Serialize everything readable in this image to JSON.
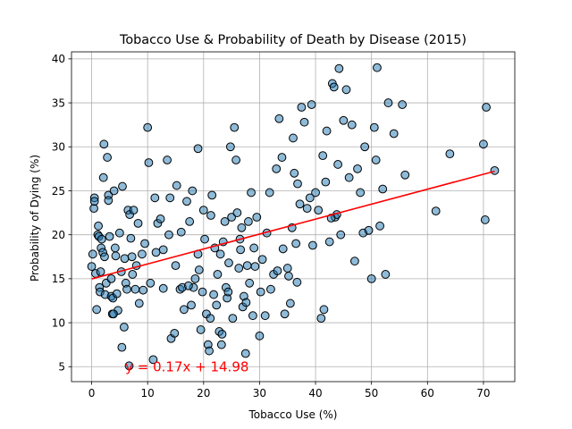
{
  "chart_data": {
    "type": "scatter",
    "title": "Tobacco Use & Probability of Death by Disease (2015)",
    "xlabel": "Tobacco Use (%)",
    "ylabel": "Probability of Dying (%)",
    "xlim": [
      -3.6,
      75.6
    ],
    "ylim": [
      3.3,
      40.8
    ],
    "xticks": [
      0,
      10,
      20,
      30,
      40,
      50,
      60,
      70
    ],
    "yticks": [
      5,
      10,
      15,
      20,
      25,
      30,
      35,
      40
    ],
    "grid": true,
    "marker_color": "#1f77b4",
    "fit_color": "#ff0000",
    "regression": {
      "slope": 0.17,
      "intercept": 14.98,
      "x_range": [
        0,
        72
      ]
    },
    "annotation": "y = 0.17x + 14.98",
    "points": [
      [
        0.4,
        23.0
      ],
      [
        0.5,
        24.2
      ],
      [
        0.5,
        23.8
      ],
      [
        0.2,
        17.8
      ],
      [
        0.0,
        16.4
      ],
      [
        0.7,
        15.6
      ],
      [
        0.9,
        11.5
      ],
      [
        1.1,
        20.0
      ],
      [
        1.2,
        21.0
      ],
      [
        1.3,
        19.8
      ],
      [
        1.4,
        14.0
      ],
      [
        1.5,
        13.5
      ],
      [
        1.6,
        15.8
      ],
      [
        1.7,
        18.5
      ],
      [
        1.8,
        19.5
      ],
      [
        2.0,
        18.0
      ],
      [
        2.1,
        26.5
      ],
      [
        2.2,
        30.3
      ],
      [
        2.3,
        17.5
      ],
      [
        2.4,
        13.2
      ],
      [
        2.6,
        14.5
      ],
      [
        2.8,
        28.8
      ],
      [
        3.0,
        24.5
      ],
      [
        3.0,
        23.9
      ],
      [
        3.2,
        19.8
      ],
      [
        3.5,
        15.0
      ],
      [
        3.5,
        13.0
      ],
      [
        3.7,
        11.0
      ],
      [
        3.8,
        12.8
      ],
      [
        4.0,
        25.0
      ],
      [
        4.2,
        18.5
      ],
      [
        4.3,
        17.6
      ],
      [
        4.5,
        13.3
      ],
      [
        4.7,
        11.4
      ],
      [
        5.0,
        20.2
      ],
      [
        5.3,
        15.8
      ],
      [
        5.4,
        7.2
      ],
      [
        5.5,
        25.5
      ],
      [
        5.8,
        9.5
      ],
      [
        5.9,
        17.3
      ],
      [
        6.1,
        14.5
      ],
      [
        6.3,
        13.8
      ],
      [
        6.5,
        22.8
      ],
      [
        6.8,
        22.3
      ],
      [
        7.0,
        19.6
      ],
      [
        7.2,
        17.5
      ],
      [
        7.5,
        22.8
      ],
      [
        7.8,
        13.8
      ],
      [
        8.0,
        16.5
      ],
      [
        8.3,
        21.3
      ],
      [
        8.5,
        12.2
      ],
      [
        9.0,
        17.8
      ],
      [
        9.5,
        19.0
      ],
      [
        10.0,
        32.2
      ],
      [
        10.2,
        28.2
      ],
      [
        10.5,
        14.5
      ],
      [
        11.0,
        5.8
      ],
      [
        11.3,
        24.2
      ],
      [
        11.5,
        18.0
      ],
      [
        11.8,
        21.3
      ],
      [
        12.3,
        21.8
      ],
      [
        12.8,
        18.3
      ],
      [
        13.5,
        28.5
      ],
      [
        13.8,
        20.0
      ],
      [
        14.0,
        24.2
      ],
      [
        14.2,
        8.2
      ],
      [
        14.8,
        8.8
      ],
      [
        15.0,
        16.5
      ],
      [
        15.2,
        25.6
      ],
      [
        15.8,
        13.8
      ],
      [
        16.0,
        20.3
      ],
      [
        16.2,
        14.0
      ],
      [
        16.5,
        11.5
      ],
      [
        17.0,
        23.8
      ],
      [
        17.5,
        21.5
      ],
      [
        17.8,
        12.0
      ],
      [
        18.0,
        25.0
      ],
      [
        18.2,
        14.0
      ],
      [
        18.5,
        15.0
      ],
      [
        19.0,
        29.8
      ],
      [
        19.2,
        16.0
      ],
      [
        19.5,
        9.2
      ],
      [
        19.8,
        13.5
      ],
      [
        20.0,
        22.8
      ],
      [
        20.2,
        19.5
      ],
      [
        20.5,
        11.0
      ],
      [
        20.8,
        7.5
      ],
      [
        21.0,
        6.8
      ],
      [
        21.2,
        10.5
      ],
      [
        21.5,
        24.5
      ],
      [
        21.8,
        13.2
      ],
      [
        22.0,
        18.5
      ],
      [
        22.3,
        12.0
      ],
      [
        22.5,
        15.5
      ],
      [
        22.8,
        9.0
      ],
      [
        23.0,
        17.8
      ],
      [
        23.2,
        7.5
      ],
      [
        23.5,
        19.2
      ],
      [
        23.8,
        21.5
      ],
      [
        24.0,
        14.0
      ],
      [
        24.2,
        12.8
      ],
      [
        24.5,
        16.8
      ],
      [
        24.8,
        30.0
      ],
      [
        25.0,
        22.0
      ],
      [
        25.2,
        10.5
      ],
      [
        25.5,
        32.2
      ],
      [
        25.8,
        28.5
      ],
      [
        26.0,
        22.5
      ],
      [
        26.3,
        16.2
      ],
      [
        26.5,
        19.5
      ],
      [
        26.8,
        20.8
      ],
      [
        27.0,
        11.8
      ],
      [
        27.2,
        13.0
      ],
      [
        27.5,
        6.5
      ],
      [
        27.8,
        16.5
      ],
      [
        28.0,
        21.5
      ],
      [
        28.2,
        14.5
      ],
      [
        28.5,
        24.8
      ],
      [
        28.8,
        10.8
      ],
      [
        29.0,
        18.5
      ],
      [
        29.5,
        22.0
      ],
      [
        30.0,
        8.5
      ],
      [
        30.2,
        13.5
      ],
      [
        30.5,
        17.2
      ],
      [
        31.0,
        10.8
      ],
      [
        31.3,
        20.2
      ],
      [
        31.8,
        24.8
      ],
      [
        32.0,
        13.8
      ],
      [
        32.5,
        15.5
      ],
      [
        33.0,
        27.5
      ],
      [
        33.5,
        33.2
      ],
      [
        34.0,
        28.8
      ],
      [
        34.5,
        11.0
      ],
      [
        35.0,
        16.2
      ],
      [
        35.5,
        12.2
      ],
      [
        35.8,
        20.8
      ],
      [
        36.0,
        31.0
      ],
      [
        36.2,
        27.0
      ],
      [
        36.5,
        19.0
      ],
      [
        36.8,
        25.8
      ],
      [
        37.2,
        23.5
      ],
      [
        37.5,
        34.5
      ],
      [
        38.0,
        32.8
      ],
      [
        38.5,
        23.0
      ],
      [
        39.0,
        24.2
      ],
      [
        39.5,
        18.8
      ],
      [
        40.0,
        24.8
      ],
      [
        40.5,
        22.8
      ],
      [
        41.0,
        10.5
      ],
      [
        41.3,
        29.0
      ],
      [
        41.8,
        26.0
      ],
      [
        42.0,
        31.8
      ],
      [
        42.5,
        19.2
      ],
      [
        43.0,
        37.2
      ],
      [
        43.3,
        36.8
      ],
      [
        43.5,
        22.0
      ],
      [
        43.8,
        22.3
      ],
      [
        44.0,
        28.0
      ],
      [
        44.2,
        38.9
      ],
      [
        44.5,
        20.0
      ],
      [
        45.0,
        33.0
      ],
      [
        45.5,
        36.5
      ],
      [
        46.0,
        26.5
      ],
      [
        46.5,
        32.5
      ],
      [
        47.0,
        17.0
      ],
      [
        47.5,
        27.5
      ],
      [
        48.0,
        24.8
      ],
      [
        48.5,
        20.2
      ],
      [
        48.8,
        30.0
      ],
      [
        49.5,
        20.5
      ],
      [
        50.0,
        15.0
      ],
      [
        50.5,
        32.2
      ],
      [
        50.8,
        28.5
      ],
      [
        51.0,
        39.0
      ],
      [
        51.5,
        21.0
      ],
      [
        52.0,
        25.2
      ],
      [
        52.5,
        15.5
      ],
      [
        53.0,
        35.0
      ],
      [
        54.0,
        31.5
      ],
      [
        55.5,
        34.8
      ],
      [
        56.0,
        26.8
      ],
      [
        61.5,
        22.7
      ],
      [
        64.0,
        29.2
      ],
      [
        70.0,
        30.3
      ],
      [
        70.3,
        21.7
      ],
      [
        70.5,
        34.5
      ],
      [
        72.0,
        27.3
      ],
      [
        3.9,
        11.0
      ],
      [
        7.3,
        15.5
      ],
      [
        9.2,
        13.7
      ],
      [
        17.3,
        14.2
      ],
      [
        23.3,
        8.7
      ],
      [
        27.6,
        12.3
      ],
      [
        33.2,
        15.9
      ],
      [
        35.2,
        15.3
      ],
      [
        41.5,
        11.5
      ],
      [
        6.7,
        5.1
      ],
      [
        12.8,
        13.9
      ],
      [
        19.0,
        17.8
      ],
      [
        21.3,
        22.2
      ],
      [
        24.4,
        13.5
      ],
      [
        26.6,
        18.3
      ],
      [
        29.2,
        16.4
      ],
      [
        34.2,
        18.4
      ],
      [
        36.7,
        14.6
      ],
      [
        39.3,
        34.8
      ],
      [
        42.8,
        21.9
      ]
    ]
  }
}
